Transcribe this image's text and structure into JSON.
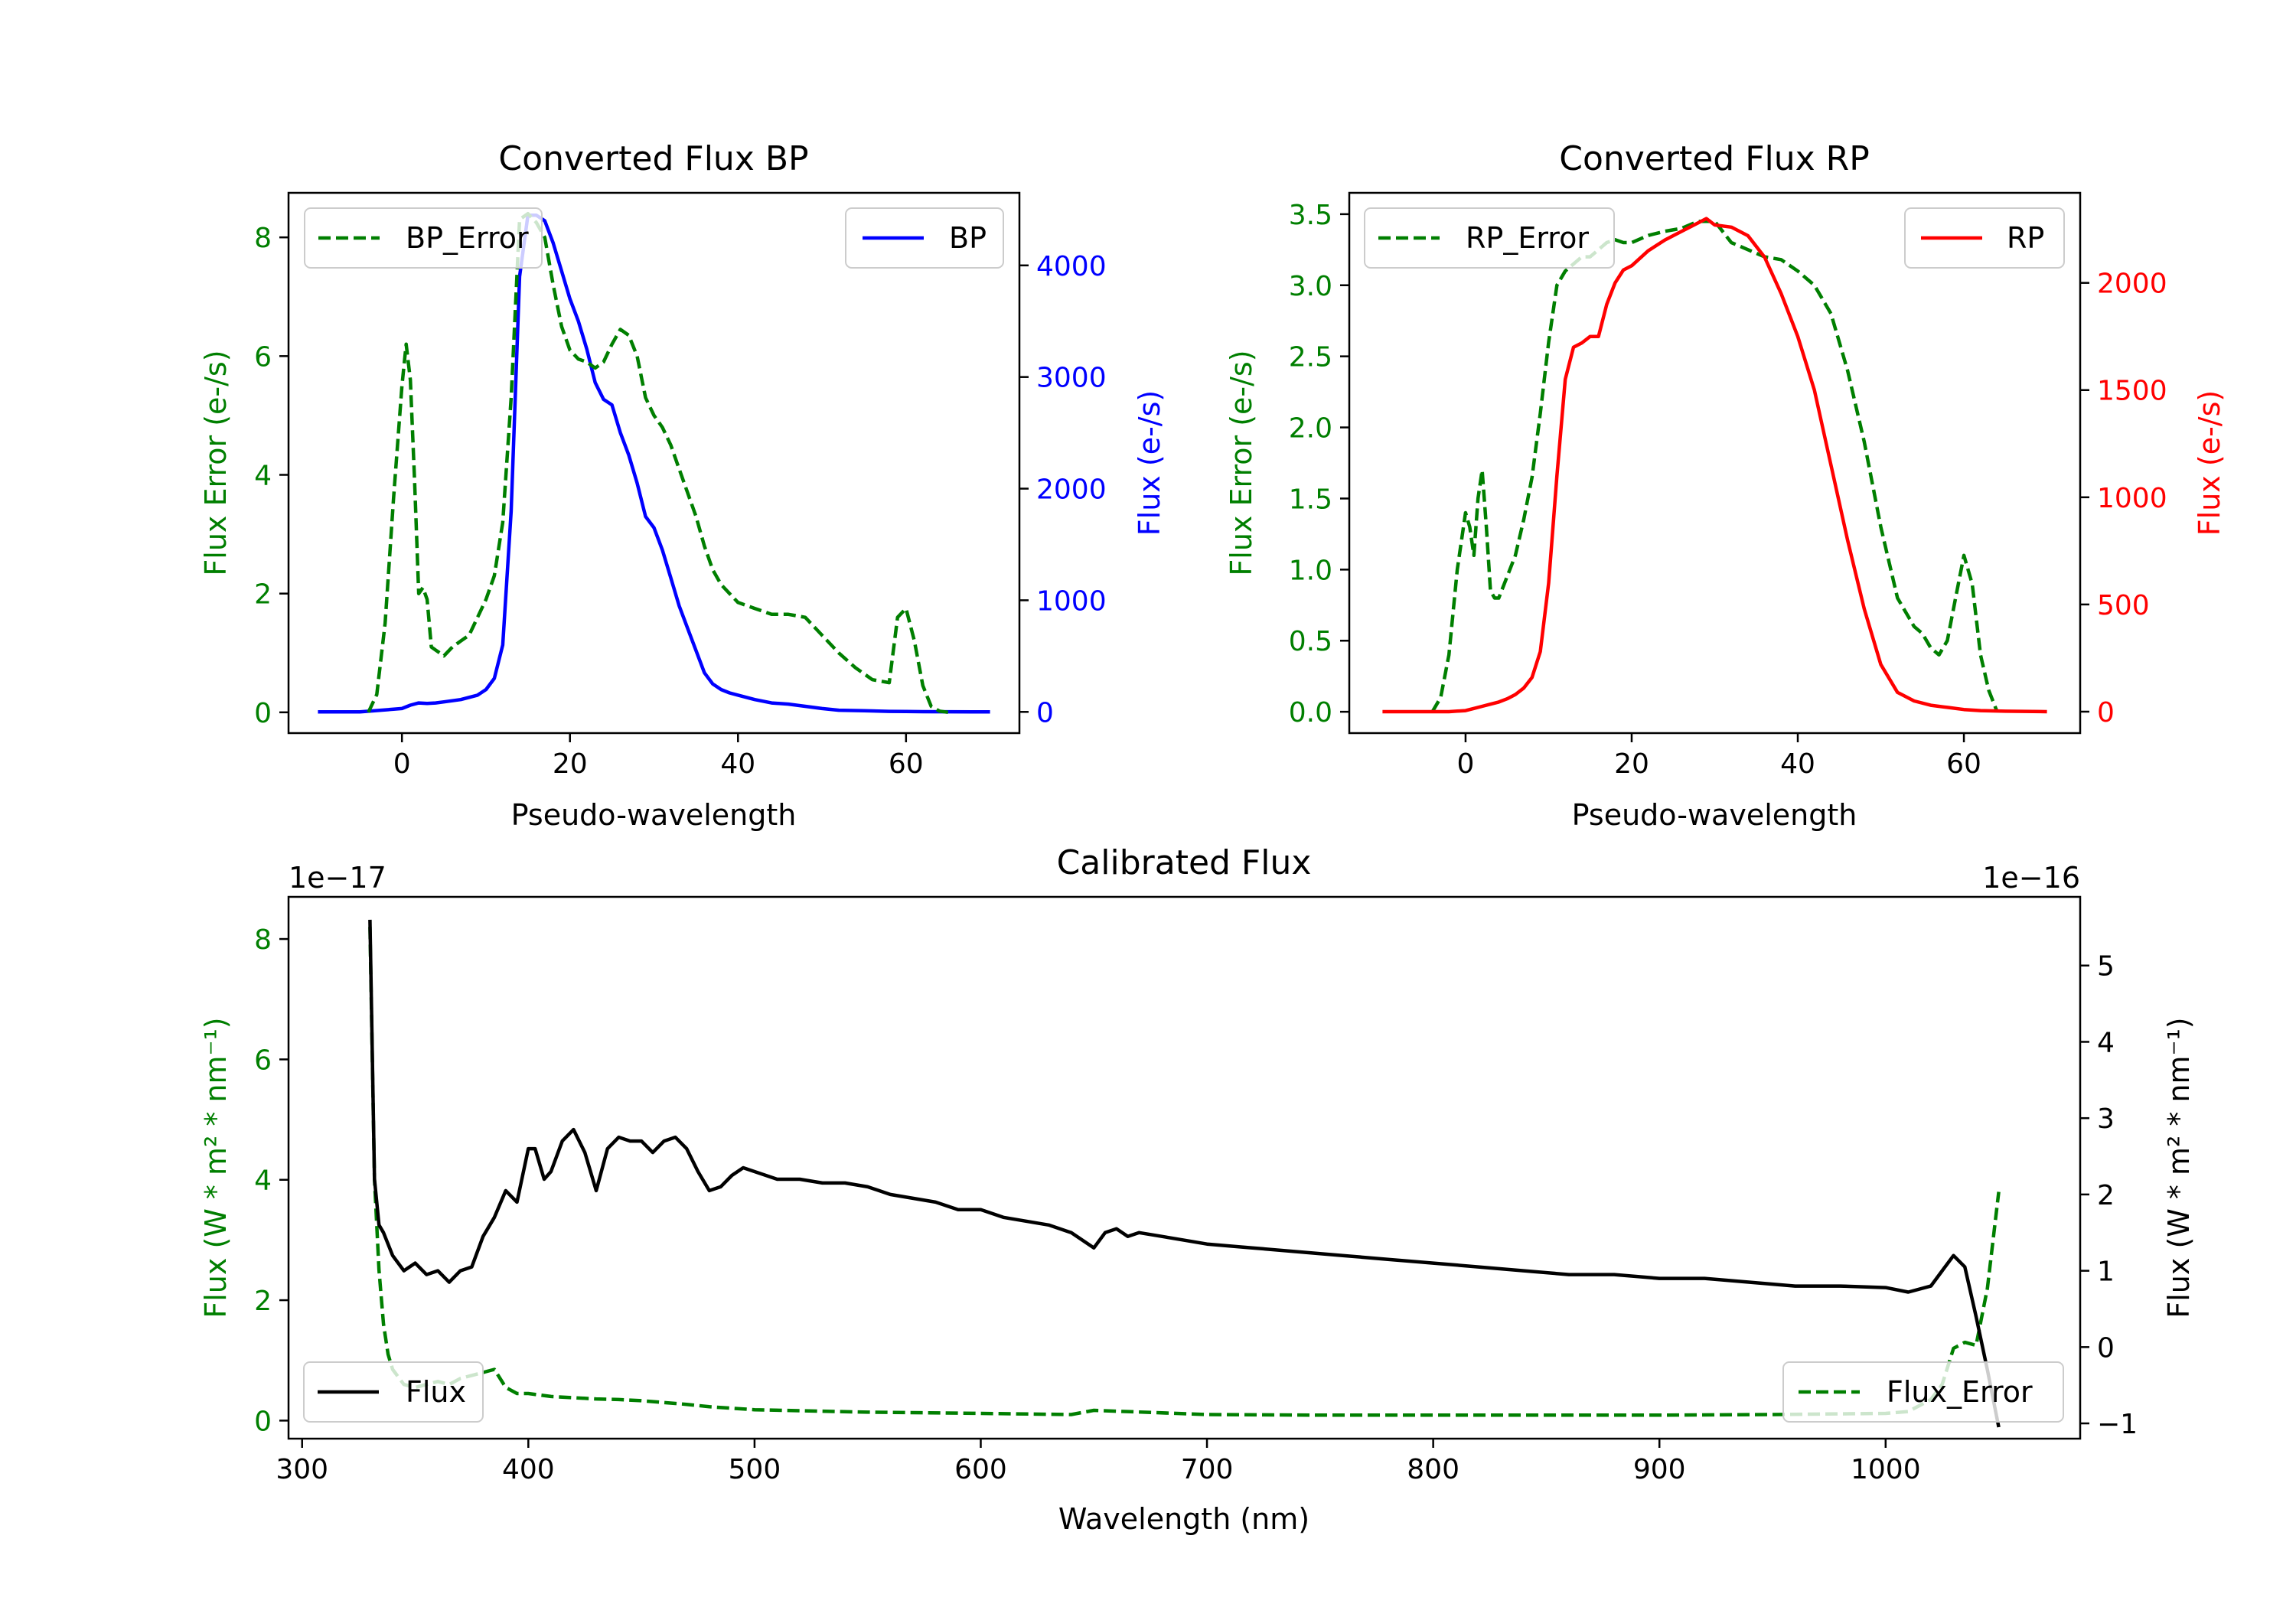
{
  "colors": {
    "bp": "#0000ff",
    "rp": "#ff0000",
    "error": "#007f00",
    "flux": "#000000",
    "axis": "#000000",
    "legend_border": "#cccccc"
  },
  "chart_data": [
    {
      "id": "bp",
      "type": "line",
      "title": "Converted Flux BP",
      "xlabel": "Pseudo-wavelength",
      "ylabel_left": "Flux Error (e-/s)",
      "ylabel_right": "Flux (e-/s)",
      "xlim": [
        -13.5,
        73.5
      ],
      "ylim_left": [
        -0.35,
        8.75
      ],
      "ylim_right": [
        -190,
        4650
      ],
      "xticks": [
        "0",
        "20",
        "40",
        "60"
      ],
      "xtick_values": [
        0,
        20,
        40,
        60
      ],
      "yticks_left": [
        "0",
        "2",
        "4",
        "6",
        "8"
      ],
      "ytick_values_left": [
        0,
        2,
        4,
        6,
        8
      ],
      "yticks_right": [
        "0",
        "1000",
        "2000",
        "3000",
        "4000"
      ],
      "ytick_values_right": [
        0,
        1000,
        2000,
        3000,
        4000
      ],
      "legend_left": "BP_Error",
      "legend_right": "BP",
      "series_left": {
        "name": "BP_Error",
        "style": "dashed",
        "x": [
          -4,
          -3,
          -2,
          -1,
          0,
          0.5,
          1,
          1.5,
          2,
          2.5,
          3,
          3.5,
          4,
          5,
          6,
          7,
          8,
          9,
          10,
          11,
          12,
          13,
          14,
          15,
          16,
          17,
          18,
          19,
          20,
          21,
          22,
          23,
          24,
          25,
          26,
          27,
          28,
          29,
          30,
          31,
          32,
          33,
          34,
          35,
          36,
          37,
          38,
          40,
          42,
          44,
          46,
          48,
          50,
          52,
          54,
          56,
          58,
          59,
          60,
          61,
          62,
          63,
          64,
          65
        ],
        "y": [
          0.0,
          0.3,
          1.5,
          3.6,
          5.5,
          6.2,
          5.6,
          3.9,
          2.0,
          2.1,
          1.9,
          1.1,
          1.05,
          0.95,
          1.1,
          1.2,
          1.3,
          1.6,
          1.9,
          2.3,
          3.2,
          5.3,
          8.3,
          8.4,
          8.25,
          8.0,
          7.2,
          6.5,
          6.1,
          5.95,
          5.9,
          5.8,
          5.9,
          6.2,
          6.45,
          6.35,
          6.0,
          5.3,
          5.0,
          4.8,
          4.5,
          4.1,
          3.7,
          3.3,
          2.8,
          2.4,
          2.15,
          1.85,
          1.75,
          1.65,
          1.65,
          1.6,
          1.3,
          1.0,
          0.75,
          0.55,
          0.5,
          1.6,
          1.75,
          1.2,
          0.45,
          0.1,
          0.02,
          0.0
        ]
      },
      "series_right": {
        "name": "BP",
        "style": "solid",
        "x": [
          -10,
          -5,
          0,
          1,
          2,
          3,
          4,
          5,
          6,
          7,
          8,
          9,
          10,
          11,
          12,
          13,
          14,
          15,
          16,
          17,
          18,
          19,
          20,
          21,
          22,
          23,
          24,
          25,
          26,
          27,
          28,
          29,
          30,
          31,
          32,
          33,
          34,
          35,
          36,
          37,
          38,
          39,
          40,
          42,
          44,
          46,
          48,
          50,
          52,
          55,
          58,
          60,
          62,
          65,
          70
        ],
        "y": [
          0,
          0,
          30,
          60,
          80,
          75,
          80,
          90,
          100,
          110,
          130,
          150,
          200,
          300,
          600,
          1800,
          3900,
          4450,
          4450,
          4400,
          4200,
          3950,
          3700,
          3500,
          3250,
          2950,
          2800,
          2750,
          2500,
          2300,
          2050,
          1750,
          1650,
          1450,
          1200,
          950,
          750,
          550,
          350,
          250,
          200,
          170,
          150,
          110,
          80,
          70,
          50,
          30,
          15,
          10,
          5,
          3,
          2,
          1,
          0
        ]
      }
    },
    {
      "id": "rp",
      "type": "line",
      "title": "Converted Flux RP",
      "xlabel": "Pseudo-wavelength",
      "ylabel_left": "Flux Error (e-/s)",
      "ylabel_right": "Flux (e-/s)",
      "xlim": [
        -14,
        74
      ],
      "ylim_left": [
        -0.15,
        3.65
      ],
      "ylim_right": [
        -100,
        2420
      ],
      "xticks": [
        "0",
        "20",
        "40",
        "60"
      ],
      "xtick_values": [
        0,
        20,
        40,
        60
      ],
      "yticks_left": [
        "0.0",
        "0.5",
        "1.0",
        "1.5",
        "2.0",
        "2.5",
        "3.0",
        "3.5"
      ],
      "ytick_values_left": [
        0,
        0.5,
        1,
        1.5,
        2,
        2.5,
        3,
        3.5
      ],
      "yticks_right": [
        "0",
        "500",
        "1000",
        "1500",
        "2000"
      ],
      "ytick_values_right": [
        0,
        500,
        1000,
        1500,
        2000
      ],
      "legend_left": "RP_Error",
      "legend_right": "RP",
      "series_left": {
        "name": "RP_Error",
        "style": "dashed",
        "x": [
          -4,
          -3,
          -2,
          -1,
          0,
          0.5,
          1,
          1.5,
          2,
          2.5,
          3,
          3.5,
          4,
          5,
          6,
          7,
          8,
          9,
          10,
          11,
          12,
          13,
          14,
          15,
          16,
          17,
          18,
          19,
          20,
          22,
          24,
          26,
          28,
          30,
          32,
          34,
          36,
          38,
          40,
          42,
          44,
          46,
          48,
          50,
          52,
          54,
          55,
          56,
          57,
          58,
          59,
          60,
          61,
          62,
          63,
          64
        ],
        "y": [
          0.0,
          0.1,
          0.4,
          1.0,
          1.4,
          1.3,
          1.1,
          1.5,
          1.7,
          1.3,
          0.85,
          0.8,
          0.8,
          0.95,
          1.1,
          1.35,
          1.65,
          2.1,
          2.6,
          3.0,
          3.1,
          3.15,
          3.2,
          3.2,
          3.25,
          3.3,
          3.32,
          3.3,
          3.3,
          3.35,
          3.38,
          3.4,
          3.45,
          3.45,
          3.3,
          3.25,
          3.2,
          3.18,
          3.1,
          3.0,
          2.8,
          2.4,
          1.9,
          1.3,
          0.8,
          0.6,
          0.55,
          0.45,
          0.4,
          0.5,
          0.8,
          1.1,
          0.9,
          0.4,
          0.15,
          0.0
        ]
      },
      "series_right": {
        "name": "RP",
        "style": "solid",
        "x": [
          -10,
          -5,
          -2,
          0,
          1,
          2,
          3,
          4,
          5,
          6,
          7,
          8,
          9,
          10,
          11,
          12,
          13,
          14,
          15,
          16,
          17,
          18,
          19,
          20,
          22,
          24,
          26,
          28,
          29,
          30,
          32,
          34,
          36,
          38,
          40,
          42,
          44,
          46,
          48,
          50,
          52,
          54,
          56,
          58,
          60,
          62,
          65,
          70
        ],
        "y": [
          0,
          0,
          0,
          5,
          15,
          25,
          35,
          45,
          60,
          80,
          110,
          160,
          280,
          600,
          1100,
          1550,
          1700,
          1720,
          1750,
          1750,
          1900,
          2000,
          2060,
          2080,
          2150,
          2200,
          2240,
          2280,
          2300,
          2270,
          2260,
          2220,
          2120,
          1950,
          1750,
          1500,
          1150,
          800,
          480,
          220,
          90,
          50,
          30,
          20,
          10,
          5,
          2,
          0
        ]
      }
    },
    {
      "id": "calibrated",
      "type": "line",
      "title": "Calibrated Flux",
      "xlabel": "Wavelength (nm)",
      "ylabel_left": "Flux (W * m² * nm⁻¹)",
      "ylabel_right": "Flux (W * m² * nm⁻¹)",
      "offset_left": "1e−17",
      "offset_right": "1e−16",
      "xlim": [
        294,
        1086
      ],
      "ylim_left": [
        -0.3,
        8.7
      ],
      "ylim_right": [
        -1.2,
        5.9
      ],
      "xticks": [
        "300",
        "400",
        "500",
        "600",
        "700",
        "800",
        "900",
        "1000"
      ],
      "xtick_values": [
        300,
        400,
        500,
        600,
        700,
        800,
        900,
        1000
      ],
      "yticks_left": [
        "0",
        "2",
        "4",
        "6",
        "8"
      ],
      "ytick_values_left": [
        0,
        2,
        4,
        6,
        8
      ],
      "yticks_right": [
        "−1",
        "0",
        "1",
        "2",
        "3",
        "4",
        "5"
      ],
      "ytick_values_right": [
        -1,
        0,
        1,
        2,
        3,
        4,
        5
      ],
      "legend_left": "Flux",
      "legend_right": "Flux_Error",
      "series_left": {
        "name": "Flux_Error",
        "style": "dashed",
        "x": [
          330,
          332,
          334,
          336,
          338,
          340,
          345,
          350,
          355,
          360,
          365,
          370,
          375,
          380,
          385,
          390,
          395,
          400,
          410,
          420,
          430,
          440,
          450,
          460,
          470,
          480,
          500,
          550,
          600,
          640,
          650,
          700,
          750,
          800,
          850,
          900,
          950,
          1000,
          1010,
          1020,
          1025,
          1030,
          1035,
          1040,
          1045,
          1050
        ],
        "y": [
          8.2,
          4.0,
          2.5,
          1.6,
          1.1,
          0.85,
          0.6,
          0.55,
          0.6,
          0.65,
          0.6,
          0.7,
          0.75,
          0.8,
          0.85,
          0.55,
          0.45,
          0.45,
          0.4,
          0.38,
          0.36,
          0.35,
          0.33,
          0.3,
          0.27,
          0.23,
          0.18,
          0.14,
          0.12,
          0.1,
          0.17,
          0.1,
          0.09,
          0.09,
          0.09,
          0.09,
          0.1,
          0.12,
          0.15,
          0.35,
          0.6,
          1.2,
          1.3,
          1.25,
          2.2,
          3.8
        ]
      },
      "series_right": {
        "name": "Flux",
        "style": "solid",
        "x": [
          330,
          332,
          334,
          336,
          340,
          345,
          350,
          355,
          360,
          365,
          370,
          375,
          380,
          385,
          390,
          395,
          400,
          403,
          407,
          410,
          415,
          420,
          425,
          430,
          435,
          440,
          445,
          450,
          455,
          460,
          465,
          470,
          475,
          480,
          485,
          490,
          495,
          500,
          510,
          520,
          530,
          540,
          550,
          560,
          570,
          580,
          590,
          600,
          610,
          620,
          630,
          640,
          650,
          655,
          660,
          665,
          670,
          680,
          690,
          700,
          720,
          740,
          760,
          780,
          800,
          820,
          840,
          860,
          880,
          900,
          920,
          940,
          960,
          980,
          1000,
          1010,
          1020,
          1025,
          1030,
          1035,
          1040,
          1045,
          1050
        ],
        "y": [
          5.6,
          2.2,
          1.6,
          1.5,
          1.2,
          1.0,
          1.1,
          0.95,
          1.0,
          0.85,
          1.0,
          1.05,
          1.45,
          1.7,
          2.05,
          1.9,
          2.6,
          2.6,
          2.2,
          2.3,
          2.7,
          2.85,
          2.55,
          2.05,
          2.6,
          2.75,
          2.7,
          2.7,
          2.55,
          2.7,
          2.75,
          2.6,
          2.3,
          2.05,
          2.1,
          2.25,
          2.35,
          2.3,
          2.2,
          2.2,
          2.15,
          2.15,
          2.1,
          2.0,
          1.95,
          1.9,
          1.8,
          1.8,
          1.7,
          1.65,
          1.6,
          1.5,
          1.3,
          1.5,
          1.55,
          1.45,
          1.5,
          1.45,
          1.4,
          1.35,
          1.3,
          1.25,
          1.2,
          1.15,
          1.1,
          1.05,
          1.0,
          0.95,
          0.95,
          0.9,
          0.9,
          0.85,
          0.8,
          0.8,
          0.78,
          0.72,
          0.8,
          1.0,
          1.2,
          1.05,
          0.4,
          -0.3,
          -1.05
        ]
      }
    }
  ]
}
